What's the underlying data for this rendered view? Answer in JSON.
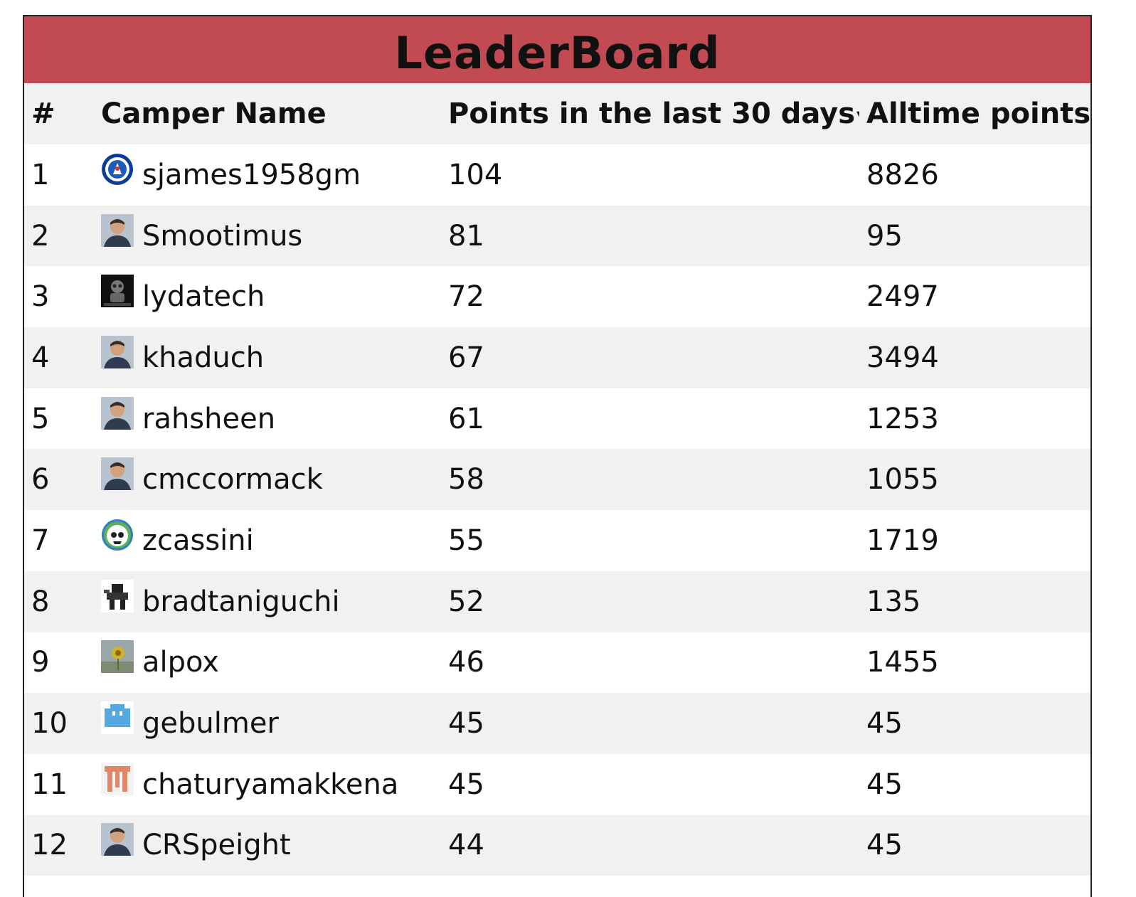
{
  "header": {
    "title": "LeaderBoard"
  },
  "columns": {
    "rank": "#",
    "name": "Camper Name",
    "recent": "Points in the last 30 days",
    "recent_sort_indicator": "▾",
    "alltime": "Alltime points"
  },
  "colors": {
    "title_bar": "#c24a52",
    "row_alt": "#f1f1f1",
    "row": "#ffffff"
  },
  "rows": [
    {
      "rank": "1",
      "name": "sjames1958gm",
      "recent": "104",
      "alltime": "8826",
      "avatar": "chelsea-crest"
    },
    {
      "rank": "2",
      "name": "Smootimus",
      "recent": "81",
      "alltime": "95",
      "avatar": "person-photo"
    },
    {
      "rank": "3",
      "name": "lydatech",
      "recent": "72",
      "alltime": "2497",
      "avatar": "robot-photo"
    },
    {
      "rank": "4",
      "name": "khaduch",
      "recent": "67",
      "alltime": "3494",
      "avatar": "person-photo"
    },
    {
      "rank": "5",
      "name": "rahsheen",
      "recent": "61",
      "alltime": "1253",
      "avatar": "person-photo"
    },
    {
      "rank": "6",
      "name": "cmccormack",
      "recent": "58",
      "alltime": "1055",
      "avatar": "person-photo"
    },
    {
      "rank": "7",
      "name": "zcassini",
      "recent": "55",
      "alltime": "1719",
      "avatar": "steal-your-face"
    },
    {
      "rank": "8",
      "name": "bradtaniguchi",
      "recent": "52",
      "alltime": "135",
      "avatar": "mech-robot"
    },
    {
      "rank": "9",
      "name": "alpox",
      "recent": "46",
      "alltime": "1455",
      "avatar": "flower-photo"
    },
    {
      "rank": "10",
      "name": "gebulmer",
      "recent": "45",
      "alltime": "45",
      "avatar": "identicon-blue"
    },
    {
      "rank": "11",
      "name": "chaturyamakkena",
      "recent": "45",
      "alltime": "45",
      "avatar": "identicon-orange"
    },
    {
      "rank": "12",
      "name": "CRSpeight",
      "recent": "44",
      "alltime": "45",
      "avatar": "person-photo"
    }
  ]
}
